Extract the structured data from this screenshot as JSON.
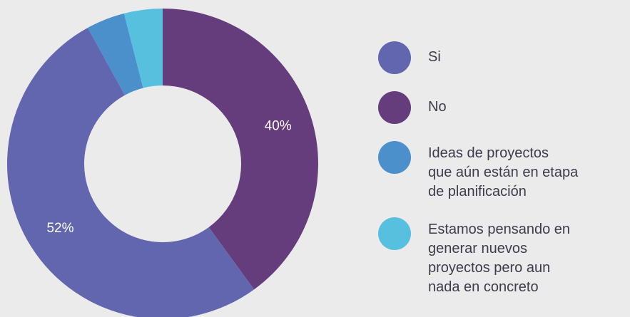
{
  "chart_data": {
    "type": "pie",
    "donut": true,
    "slices": [
      {
        "label": "No",
        "value": 40,
        "data_label": "40%",
        "color": "#663d7c"
      },
      {
        "label": "Si",
        "value": 52,
        "data_label": "52%",
        "color": "#6266ae"
      },
      {
        "label": "Ideas de proyectos\nque aún están en etapa\nde planificación",
        "value": 4,
        "data_label": "",
        "color": "#4b8fcb"
      },
      {
        "label": "Estamos pensando en\ngenerar nuevos\nproyectos pero aun\nnada en concreto",
        "value": 4,
        "data_label": "",
        "color": "#58c0df"
      }
    ],
    "legend": {
      "placement": "right",
      "entries": [
        {
          "label": "Si",
          "color": "#6266ae"
        },
        {
          "label": "No",
          "color": "#663d7c"
        },
        {
          "label": "Ideas de proyectos\nque aún están en etapa\nde planificación",
          "color": "#4b8fcb"
        },
        {
          "label": "Estamos pensando en\ngenerar nuevos\nproyectos pero aun\nnada en concreto",
          "color": "#58c0df"
        }
      ]
    },
    "background": "#ebebeb"
  }
}
